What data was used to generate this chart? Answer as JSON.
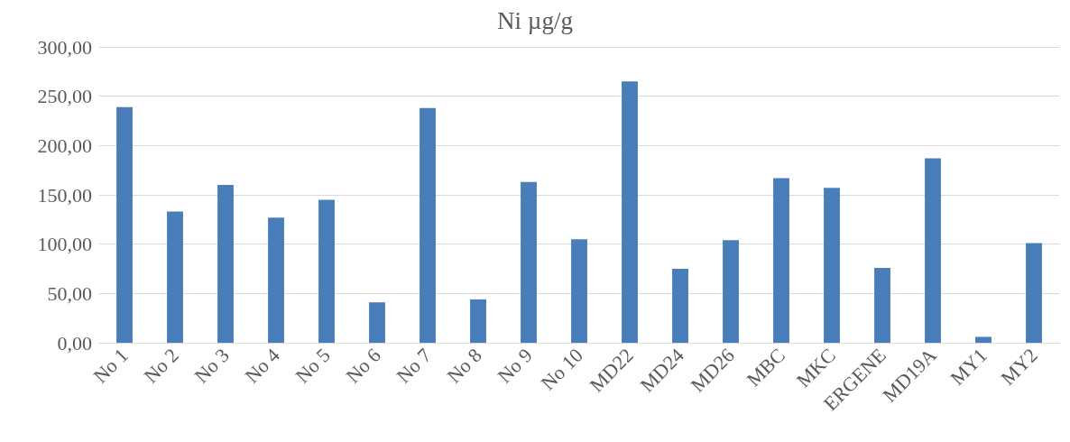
{
  "chart_data": {
    "type": "bar",
    "title": "Ni µg/g",
    "categories": [
      "No 1",
      "No 2",
      "No 3",
      "No 4",
      "No 5",
      "No 6",
      "No 7",
      "No 8",
      "No 9",
      "No 10",
      "MD22",
      "MD24",
      "MD26",
      "MBC",
      "MKC",
      "ERGENE",
      "MD19A",
      "MY1",
      "MY2"
    ],
    "values": [
      239,
      133,
      160,
      127,
      145,
      41,
      238,
      44,
      163,
      105,
      265,
      75,
      104,
      167,
      157,
      76,
      187,
      6,
      101
    ],
    "color": "#4a7ebb",
    "ylim": [
      0,
      300
    ],
    "yticks": [
      {
        "value": 0,
        "label": "0,00"
      },
      {
        "value": 50,
        "label": "50,00"
      },
      {
        "value": 100,
        "label": "100,00"
      },
      {
        "value": 150,
        "label": "150,00"
      },
      {
        "value": 200,
        "label": "200,00"
      },
      {
        "value": 250,
        "label": "250,00"
      },
      {
        "value": 300,
        "label": "300,00"
      }
    ],
    "grid": "y"
  }
}
